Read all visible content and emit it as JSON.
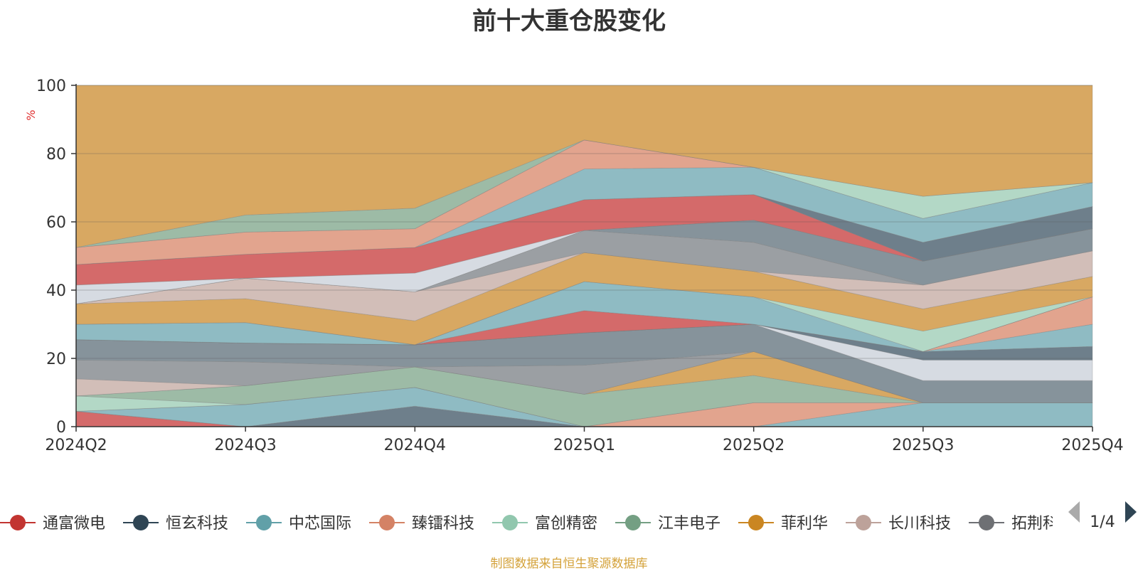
{
  "chart_data": {
    "type": "area",
    "title": "前十大重仓股变化",
    "ylabel": "%",
    "ylim": [
      0,
      100
    ],
    "yticks": [
      "0",
      "20",
      "40",
      "60",
      "80",
      "100"
    ],
    "categories": [
      "2024Q2",
      "2024Q3",
      "2024Q4",
      "2025Q1",
      "2025Q2",
      "2025Q3",
      "2025Q4"
    ],
    "layers": [
      {
        "name": "band-1",
        "color": "#D46A6A",
        "lower": [
          0,
          0,
          0,
          0,
          0,
          0,
          0
        ],
        "upper": [
          4.5,
          0,
          0,
          0,
          0,
          0,
          0
        ]
      },
      {
        "name": "band-2",
        "color": "#6E7F8B",
        "lower": [
          4.5,
          0,
          0,
          0,
          0,
          0,
          0
        ],
        "upper": [
          4.5,
          0,
          6,
          0,
          0,
          0,
          0
        ]
      },
      {
        "name": "band-3",
        "color": "#8FBBC3",
        "lower": [
          4.5,
          0,
          6,
          0,
          0,
          0,
          0
        ],
        "upper": [
          4.5,
          6.5,
          11.5,
          0,
          0,
          7,
          7
        ]
      },
      {
        "name": "band-4",
        "color": "#E2A48E",
        "lower": [
          4.5,
          6.5,
          11.5,
          0,
          0,
          7,
          7
        ],
        "upper": [
          4.5,
          6.5,
          11.5,
          0,
          7,
          7,
          7
        ]
      },
      {
        "name": "band-5",
        "color": "#B3D8C6",
        "lower": [
          4.5,
          6.5,
          11.5,
          0,
          7,
          7,
          7
        ],
        "upper": [
          9,
          6.5,
          11.5,
          0,
          7,
          7,
          7
        ]
      },
      {
        "name": "band-6",
        "color": "#9DBBA6",
        "lower": [
          9,
          6.5,
          11.5,
          0,
          7,
          7,
          7
        ],
        "upper": [
          9,
          12,
          17.5,
          9.5,
          15,
          7,
          7
        ]
      },
      {
        "name": "band-7",
        "color": "#D8A862",
        "lower": [
          9,
          12,
          17.5,
          9.5,
          15,
          7,
          7
        ],
        "upper": [
          9,
          12,
          17.5,
          9.5,
          22,
          7,
          7
        ]
      },
      {
        "name": "band-8",
        "color": "#D2BEB8",
        "lower": [
          9,
          12,
          17.5,
          9.5,
          22,
          7,
          7
        ],
        "upper": [
          14,
          12,
          17.5,
          9.5,
          22,
          7,
          7
        ]
      },
      {
        "name": "band-9",
        "color": "#9B9FA3",
        "lower": [
          14,
          12,
          17.5,
          9.5,
          22,
          7,
          7
        ],
        "upper": [
          19.5,
          19,
          17.5,
          18,
          22,
          7,
          7
        ]
      },
      {
        "name": "band-10",
        "color": "#86939B",
        "lower": [
          19.5,
          19,
          17.5,
          18,
          22,
          7,
          7
        ],
        "upper": [
          25.5,
          24.5,
          24,
          27.5,
          30,
          13.5,
          13.5
        ]
      },
      {
        "name": "band-11",
        "color": "#D6DBE2",
        "lower": [
          25.5,
          24.5,
          24,
          27.5,
          30,
          13.5,
          13.5
        ],
        "upper": [
          25.5,
          24.5,
          24,
          27.5,
          30,
          19.5,
          19.5
        ]
      },
      {
        "name": "band-12",
        "color": "#6E7F8B",
        "lower": [
          25.5,
          24.5,
          24,
          27.5,
          30,
          19.5,
          19.5
        ],
        "upper": [
          25.5,
          24.5,
          24,
          27.5,
          30,
          22,
          23.5
        ]
      },
      {
        "name": "band-13",
        "color": "#8FBBC3",
        "lower": [
          25.5,
          24.5,
          24,
          27.5,
          30,
          22,
          23.5
        ],
        "upper": [
          25.5,
          24.5,
          24,
          27.5,
          30,
          22,
          30
        ]
      },
      {
        "name": "band-14",
        "color": "#E2A48E",
        "lower": [
          25.5,
          24.5,
          24,
          27.5,
          30,
          22,
          30
        ],
        "upper": [
          25.5,
          24.5,
          24,
          27.5,
          30,
          22,
          38
        ]
      },
      {
        "name": "band-15",
        "color": "#D46A6A",
        "lower": [
          25.5,
          24.5,
          24,
          27.5,
          30,
          22,
          38
        ],
        "upper": [
          25.5,
          24.5,
          24,
          34,
          30,
          22,
          38
        ]
      },
      {
        "name": "band-16",
        "color": "#8FBBC3",
        "lower": [
          25.5,
          24.5,
          24,
          34,
          30,
          22,
          38
        ],
        "upper": [
          30,
          30.5,
          24,
          42.5,
          38,
          22,
          38
        ]
      },
      {
        "name": "band-17",
        "color": "#B3D8C6",
        "lower": [
          30,
          30.5,
          24,
          42.5,
          38,
          22,
          38
        ],
        "upper": [
          30,
          30.5,
          24,
          42.5,
          38,
          28,
          38
        ]
      },
      {
        "name": "band-18",
        "color": "#D8A862",
        "lower": [
          30,
          30.5,
          24,
          42.5,
          38,
          28,
          38
        ],
        "upper": [
          36,
          37.5,
          31,
          51,
          45.5,
          34.5,
          44
        ]
      },
      {
        "name": "band-19",
        "color": "#D2BEB8",
        "lower": [
          36,
          37.5,
          31,
          51,
          45.5,
          34.5,
          44
        ],
        "upper": [
          36,
          43.5,
          39.5,
          51,
          45.5,
          41.5,
          51.5
        ]
      },
      {
        "name": "band-20",
        "color": "#9B9FA3",
        "lower": [
          36,
          43.5,
          39.5,
          51,
          45.5,
          41.5,
          51.5
        ],
        "upper": [
          36,
          43.5,
          39.5,
          57.5,
          54,
          41.5,
          51.5
        ]
      },
      {
        "name": "band-21",
        "color": "#86939B",
        "lower": [
          36,
          43.5,
          39.5,
          57.5,
          54,
          41.5,
          51.5
        ],
        "upper": [
          36,
          43.5,
          39.5,
          57.5,
          60.5,
          48.5,
          58
        ]
      },
      {
        "name": "band-22",
        "color": "#D6DBE2",
        "lower": [
          36,
          43.5,
          39.5,
          57.5,
          60.5,
          48.5,
          58
        ],
        "upper": [
          41.5,
          43.5,
          45,
          57.5,
          60.5,
          48.5,
          58
        ]
      },
      {
        "name": "band-23",
        "color": "#D46A6A",
        "lower": [
          41.5,
          43.5,
          45,
          57.5,
          60.5,
          48.5,
          58
        ],
        "upper": [
          47.5,
          50.5,
          52.5,
          66.5,
          68,
          48.5,
          58
        ]
      },
      {
        "name": "band-24",
        "color": "#6E7F8B",
        "lower": [
          47.5,
          50.5,
          52.5,
          66.5,
          68,
          48.5,
          58
        ],
        "upper": [
          47.5,
          50.5,
          52.5,
          66.5,
          68,
          54,
          64.5
        ]
      },
      {
        "name": "band-25",
        "color": "#8FBBC3",
        "lower": [
          47.5,
          50.5,
          52.5,
          66.5,
          68,
          54,
          64.5
        ],
        "upper": [
          47.5,
          50.5,
          52.5,
          75.5,
          76,
          61,
          71.5
        ]
      },
      {
        "name": "band-26",
        "color": "#E2A48E",
        "lower": [
          47.5,
          50.5,
          52.5,
          75.5,
          76,
          61,
          71.5
        ],
        "upper": [
          52.5,
          57,
          58,
          84,
          76,
          61,
          71.5
        ]
      },
      {
        "name": "band-27",
        "color": "#B3D8C6",
        "lower": [
          52.5,
          57,
          58,
          84,
          76,
          61,
          71.5
        ],
        "upper": [
          52.5,
          57,
          58,
          84,
          76,
          67.5,
          71.5
        ]
      },
      {
        "name": "band-28",
        "color": "#9DBBA6",
        "lower": [
          52.5,
          57,
          58,
          84,
          76,
          67.5,
          71.5
        ],
        "upper": [
          52.5,
          62,
          64,
          84,
          76,
          67.5,
          71.5
        ]
      },
      {
        "name": "band-29",
        "color": "#D8A862",
        "lower": [
          52.5,
          62,
          64,
          84,
          76,
          67.5,
          71.5
        ],
        "upper": [
          100,
          100,
          100,
          100,
          100,
          100,
          100
        ]
      }
    ],
    "legend": [
      {
        "name": "通富微电",
        "color": "#C23531"
      },
      {
        "name": "恒玄科技",
        "color": "#2F4554"
      },
      {
        "name": "中芯国际",
        "color": "#61A0A8"
      },
      {
        "name": "臻镭科技",
        "color": "#D48265"
      },
      {
        "name": "富创精密",
        "color": "#91C7AE"
      },
      {
        "name": "江丰电子",
        "color": "#749F83"
      },
      {
        "name": "菲利华",
        "color": "#CA8622"
      },
      {
        "name": "长川科技",
        "color": "#BDA29A"
      },
      {
        "name": "拓荆科技",
        "color": "#6E7074"
      }
    ],
    "legend_page": "1/4",
    "legend_placement": "bottom"
  },
  "footer": "制图数据来自恒生聚源数据库"
}
